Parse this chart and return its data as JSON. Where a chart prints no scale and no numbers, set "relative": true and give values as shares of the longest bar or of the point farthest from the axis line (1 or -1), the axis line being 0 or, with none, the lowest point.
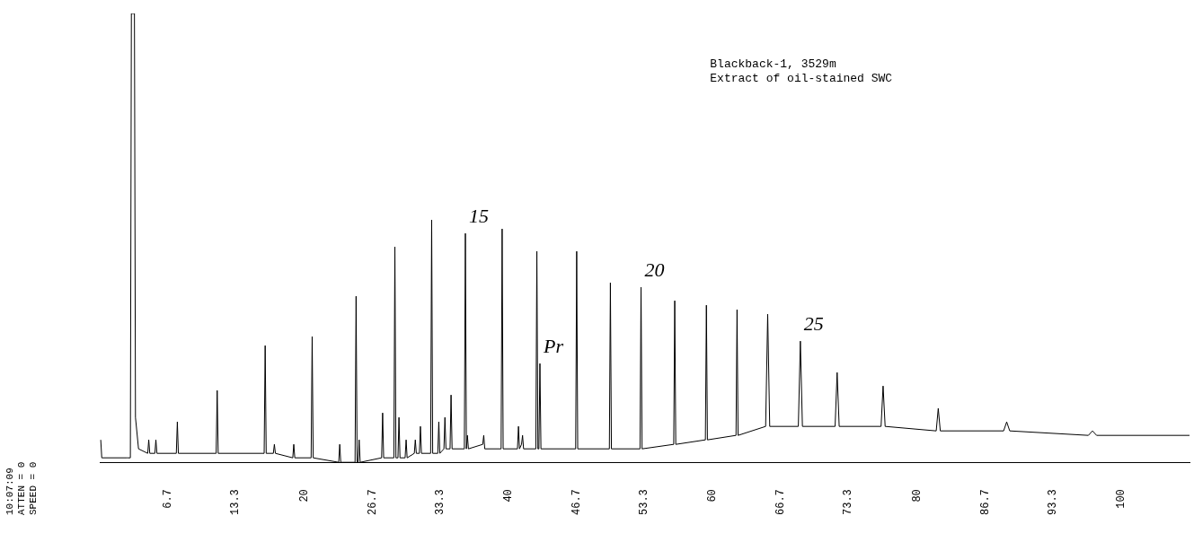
{
  "chart_data": {
    "type": "line",
    "title": "Blackback-1, 3529m",
    "subtitle": "Extract of oil-stained SWC",
    "relative": true,
    "legend": false,
    "grid": false,
    "marker": "none",
    "line_style": "solid",
    "tick_labels": "x",
    "xlim": [
      0,
      106.7
    ],
    "xticks": [
      6.7,
      13.3,
      20,
      26.7,
      33.3,
      40,
      46.7,
      53.3,
      60,
      66.7,
      73.3,
      80,
      86.7,
      93.3,
      100
    ],
    "annotations": [
      {
        "text": "15",
        "x": 35.8,
        "y": 0.51
      },
      {
        "text": "Pr",
        "x": 43.1,
        "y": 0.22
      },
      {
        "text": "20",
        "x": 53.0,
        "y": 0.39
      },
      {
        "text": "25",
        "x": 68.6,
        "y": 0.27
      },
      "10:07:09",
      "ATTEN = 0",
      "SPEED = 0"
    ],
    "series": [
      {
        "color": "#000000",
        "x": [
          0.1,
          0.2,
          2.7,
          3.0,
          3.1,
          3.4,
          3.5,
          3.8,
          4.7,
          4.8,
          4.9,
          5.4,
          5.5,
          5.6,
          7.5,
          7.6,
          7.7,
          11.4,
          11.5,
          11.6,
          16.1,
          16.2,
          16.3,
          17.0,
          17.1,
          17.2,
          18.9,
          19.0,
          19.1,
          20.7,
          20.8,
          20.9,
          23.4,
          23.5,
          23.6,
          25.0,
          25.1,
          25.2,
          25.3,
          25.4,
          25.5,
          27.6,
          27.7,
          27.8,
          28.8,
          28.9,
          29.0,
          29.2,
          29.3,
          29.4,
          29.9,
          30.0,
          30.1,
          30.8,
          30.9,
          31.0,
          31.3,
          31.4,
          31.5,
          32.4,
          32.5,
          32.6,
          33.1,
          33.2,
          33.3,
          33.7,
          33.8,
          33.9,
          34.3,
          34.4,
          34.5,
          35.7,
          35.8,
          35.9,
          36.0,
          36.1,
          37.5,
          37.6,
          37.7,
          39.3,
          39.4,
          39.5,
          40.9,
          41.0,
          41.1,
          41.3,
          41.4,
          41.5,
          42.7,
          42.8,
          42.9,
          43.0,
          43.1,
          43.2,
          46.6,
          46.7,
          46.8,
          49.9,
          50.0,
          50.1,
          52.9,
          53.0,
          53.1,
          56.2,
          56.3,
          56.4,
          59.3,
          59.4,
          59.5,
          62.3,
          62.4,
          62.5,
          65.2,
          65.4,
          65.6,
          68.4,
          68.6,
          68.8,
          72.0,
          72.2,
          72.4,
          76.5,
          76.7,
          76.9,
          81.9,
          82.1,
          82.3,
          88.5,
          88.8,
          89.1,
          96.8,
          97.2,
          97.6,
          106.7
        ],
        "values": [
          0.05,
          0.01,
          0.01,
          0.01,
          1.0,
          1.0,
          0.1,
          0.03,
          0.02,
          0.05,
          0.02,
          0.02,
          0.05,
          0.02,
          0.02,
          0.09,
          0.02,
          0.02,
          0.16,
          0.02,
          0.02,
          0.26,
          0.02,
          0.02,
          0.04,
          0.02,
          0.01,
          0.04,
          0.01,
          0.01,
          0.28,
          0.01,
          0.0,
          0.04,
          0.0,
          0.0,
          0.37,
          0.0,
          0.0,
          0.05,
          0.0,
          0.01,
          0.11,
          0.01,
          0.01,
          0.48,
          0.01,
          0.01,
          0.1,
          0.01,
          0.01,
          0.05,
          0.01,
          0.02,
          0.05,
          0.02,
          0.02,
          0.08,
          0.02,
          0.02,
          0.54,
          0.02,
          0.02,
          0.09,
          0.02,
          0.03,
          0.1,
          0.03,
          0.03,
          0.15,
          0.03,
          0.03,
          0.51,
          0.03,
          0.06,
          0.03,
          0.04,
          0.06,
          0.03,
          0.03,
          0.52,
          0.03,
          0.03,
          0.08,
          0.03,
          0.04,
          0.06,
          0.03,
          0.03,
          0.47,
          0.03,
          0.03,
          0.22,
          0.03,
          0.03,
          0.47,
          0.03,
          0.03,
          0.4,
          0.03,
          0.03,
          0.39,
          0.03,
          0.04,
          0.36,
          0.04,
          0.05,
          0.35,
          0.05,
          0.06,
          0.34,
          0.06,
          0.08,
          0.33,
          0.08,
          0.08,
          0.27,
          0.08,
          0.08,
          0.2,
          0.08,
          0.08,
          0.17,
          0.08,
          0.07,
          0.12,
          0.07,
          0.07,
          0.09,
          0.07,
          0.06,
          0.07,
          0.06,
          0.06
        ]
      }
    ]
  }
}
